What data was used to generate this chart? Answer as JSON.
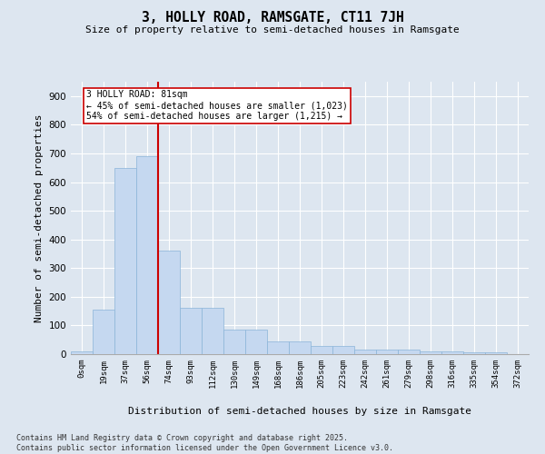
{
  "title": "3, HOLLY ROAD, RAMSGATE, CT11 7JH",
  "subtitle": "Size of property relative to semi-detached houses in Ramsgate",
  "xlabel": "Distribution of semi-detached houses by size in Ramsgate",
  "ylabel": "Number of semi-detached properties",
  "bar_color": "#c5d8f0",
  "bar_edge_color": "#8ab4d8",
  "background_color": "#dde6f0",
  "grid_color": "#ffffff",
  "categories": [
    "0sqm",
    "19sqm",
    "37sqm",
    "56sqm",
    "74sqm",
    "93sqm",
    "112sqm",
    "130sqm",
    "149sqm",
    "168sqm",
    "186sqm",
    "205sqm",
    "223sqm",
    "242sqm",
    "261sqm",
    "279sqm",
    "298sqm",
    "316sqm",
    "335sqm",
    "354sqm",
    "372sqm"
  ],
  "values": [
    10,
    155,
    650,
    690,
    360,
    160,
    160,
    85,
    85,
    45,
    45,
    30,
    30,
    15,
    15,
    15,
    10,
    10,
    5,
    5,
    0
  ],
  "annotation_title": "3 HOLLY ROAD: 81sqm",
  "annotation_line1": "← 45% of semi-detached houses are smaller (1,023)",
  "annotation_line2": "54% of semi-detached houses are larger (1,215) →",
  "vline_color": "#cc0000",
  "annotation_box_color": "#ffffff",
  "annotation_box_edge": "#cc0000",
  "ylim": [
    0,
    950
  ],
  "yticks": [
    0,
    100,
    200,
    300,
    400,
    500,
    600,
    700,
    800,
    900
  ],
  "footer_line1": "Contains HM Land Registry data © Crown copyright and database right 2025.",
  "footer_line2": "Contains public sector information licensed under the Open Government Licence v3.0.",
  "vline_x": 3.5
}
